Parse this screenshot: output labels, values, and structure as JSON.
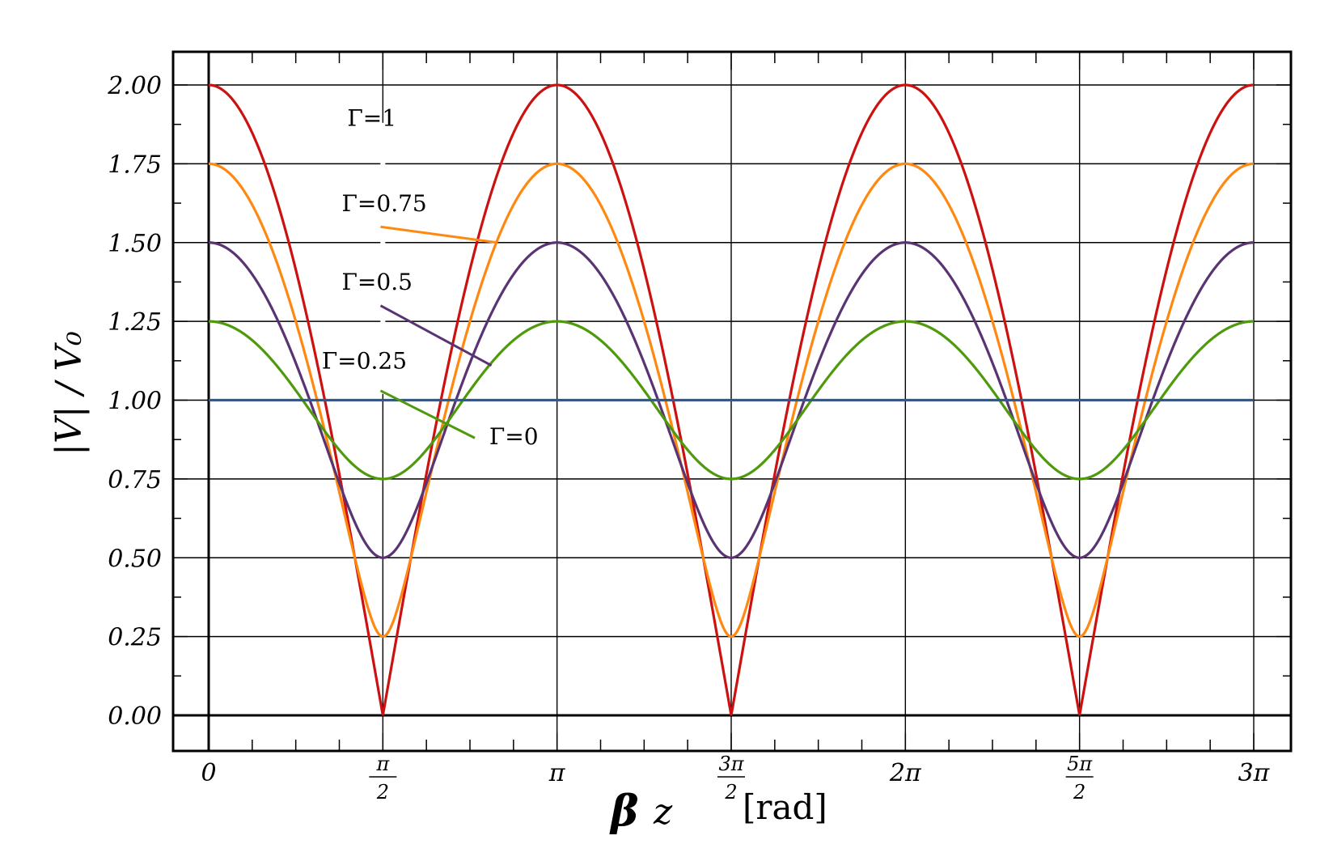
{
  "chart_data": {
    "type": "line",
    "ylabel": "|V| / V₀",
    "xlabel": {
      "symbol": "β",
      "variable": "z",
      "unit": "[rad]"
    },
    "xlim": [
      0,
      9.42477796
    ],
    "ylim": [
      -0.12,
      2.1
    ],
    "x_major_ticks": [
      {
        "value": 0,
        "label": "0"
      },
      {
        "value": 1.5707963,
        "num": "π",
        "den": "2"
      },
      {
        "value": 3.1415927,
        "label": "π"
      },
      {
        "value": 4.712389,
        "num": "3π",
        "den": "2"
      },
      {
        "value": 6.2831853,
        "label": "2π"
      },
      {
        "value": 7.8539816,
        "num": "5π",
        "den": "2"
      },
      {
        "value": 9.424778,
        "label": "3π"
      }
    ],
    "y_major_ticks": [
      {
        "value": 0.0,
        "label": "0.00"
      },
      {
        "value": 0.25,
        "label": "0.25"
      },
      {
        "value": 0.5,
        "label": "0.50"
      },
      {
        "value": 0.75,
        "label": "0.75"
      },
      {
        "value": 1.0,
        "label": "1.00"
      },
      {
        "value": 1.25,
        "label": "1.25"
      },
      {
        "value": 1.5,
        "label": "1.50"
      },
      {
        "value": 1.75,
        "label": "1.75"
      },
      {
        "value": 2.0,
        "label": "2.00"
      }
    ],
    "grid": true,
    "function": "|V|/V0 = sqrt(1 + Γ^2 + 2Γ cos(2βz))",
    "series": [
      {
        "gamma": 1.0,
        "color": "#cc1111",
        "label": "Γ=1",
        "label_x": 1.25,
        "label_y": 1.87
      },
      {
        "gamma": 0.75,
        "color": "#ff8811",
        "label": "Γ=0.75",
        "label_x": 1.2,
        "label_y": 1.6,
        "leader_from": [
          1.55,
          1.55
        ],
        "leader_to": [
          2.6,
          1.5
        ]
      },
      {
        "gamma": 0.5,
        "color": "#5a3472",
        "label": "Γ=0.5",
        "label_x": 1.2,
        "label_y": 1.35,
        "leader_from": [
          1.55,
          1.3
        ],
        "leader_to": [
          2.55,
          1.11
        ]
      },
      {
        "gamma": 0.25,
        "color": "#4e9a0c",
        "label": "Γ=0.25",
        "label_x": 1.02,
        "label_y": 1.1,
        "leader_from": [
          1.55,
          1.03
        ],
        "leader_to": [
          2.4,
          0.88
        ]
      },
      {
        "gamma": 0.0,
        "color": "#2f5a8f",
        "label": "Γ=0",
        "label_x": 2.53,
        "label_y": 0.86
      }
    ]
  }
}
